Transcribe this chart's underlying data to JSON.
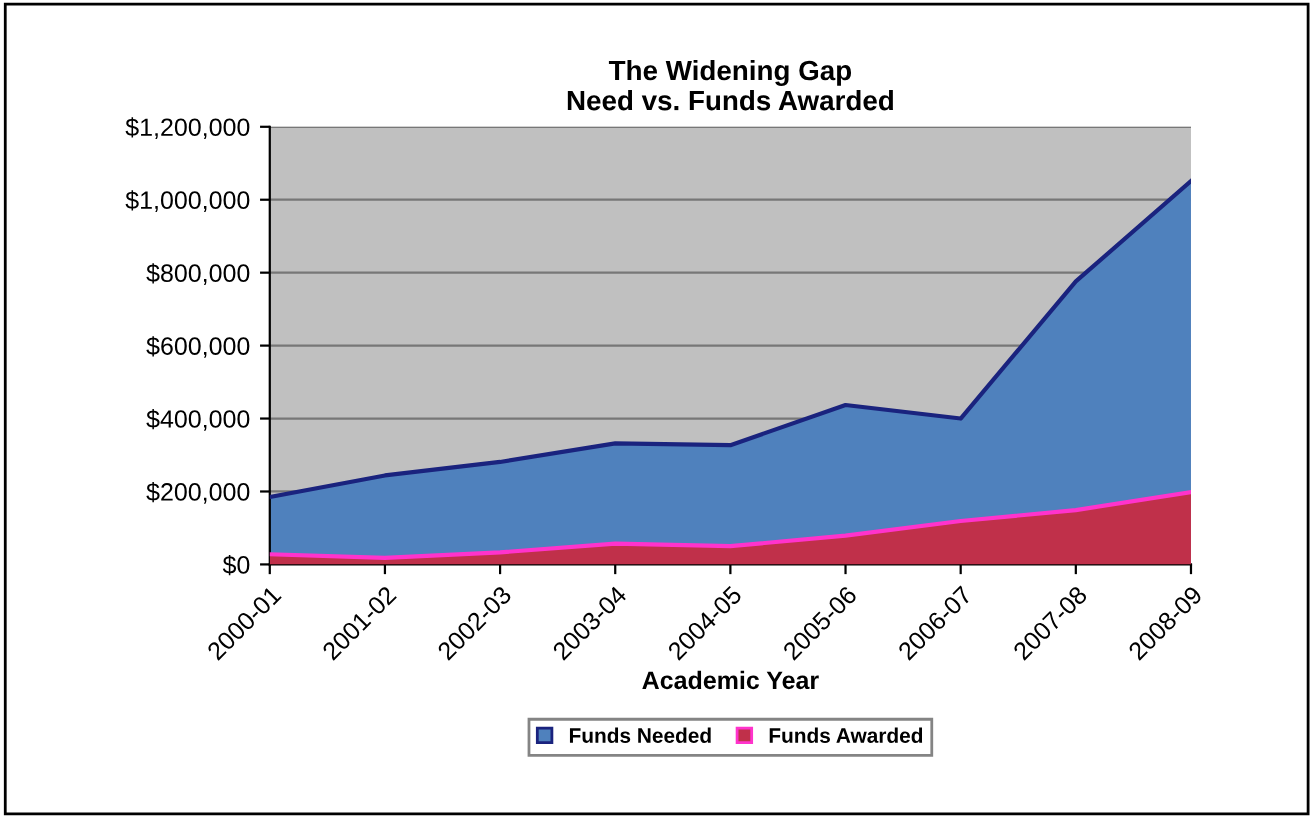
{
  "chart_data": {
    "type": "area",
    "title": "The Widening Gap\nNeed vs. Funds Awarded",
    "xlabel": "Academic Year",
    "categories": [
      "2000-01",
      "2001-02",
      "2002-03",
      "2003-04",
      "2004-05",
      "2005-06",
      "2006-07",
      "2007-08",
      "2008-09"
    ],
    "series": [
      {
        "name": "Funds Needed",
        "color": "#4f81bd",
        "values": [
          185000,
          244000,
          281000,
          332000,
          327000,
          437000,
          400000,
          776000,
          1051000
        ]
      },
      {
        "name": "Funds Awarded",
        "color": "#c0304a",
        "values": [
          28000,
          18000,
          33000,
          57000,
          50000,
          79000,
          119000,
          149000,
          198000
        ]
      }
    ],
    "ylim": [
      0,
      1200000
    ],
    "yticks": [
      {
        "value": 0,
        "label": "$0"
      },
      {
        "value": 200000,
        "label": "$200,000"
      },
      {
        "value": 400000,
        "label": "$400,000"
      },
      {
        "value": 600000,
        "label": "$600,000"
      },
      {
        "value": 800000,
        "label": "$800,000"
      },
      {
        "value": 1000000,
        "label": "$1,000,000"
      },
      {
        "value": 1200000,
        "label": "$1,200,000"
      }
    ],
    "grid": "y",
    "legend": "bottom"
  }
}
